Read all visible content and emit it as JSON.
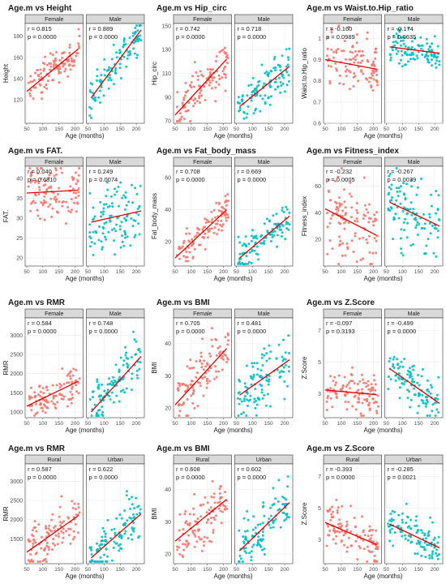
{
  "chart_data": [
    {
      "type": "scatter",
      "title": "Age.m vs Height",
      "xlabel": "Age (months)",
      "ylabel": "Height",
      "xlim": [
        45,
        225
      ],
      "ylim": [
        98,
        192
      ],
      "xticks": [
        50,
        100,
        150,
        200
      ],
      "yticks": [
        120,
        140,
        160,
        180
      ],
      "panels": [
        {
          "name": "Female",
          "r": "r = 0.815",
          "p": "p = 0.0000",
          "color": "#f8766d",
          "line": [
            [
              50,
              128
            ],
            [
              210,
              168
            ]
          ],
          "n": 110,
          "spread": 8
        },
        {
          "name": "Male",
          "r": "r = 0.889",
          "p": "p = 0.0000",
          "color": "#00bfc4",
          "line": [
            [
              60,
              122
            ],
            [
              215,
              186
            ]
          ],
          "n": 110,
          "spread": 9
        }
      ]
    },
    {
      "type": "scatter",
      "title": "Age.m vs Hip_circ",
      "xlabel": "Age (months)",
      "ylabel": "Hip_circ",
      "xlim": [
        45,
        225
      ],
      "ylim": [
        68,
        152
      ],
      "xticks": [
        50,
        100,
        150,
        200
      ],
      "yticks": [
        70,
        90,
        110,
        130,
        150
      ],
      "panels": [
        {
          "name": "Female",
          "r": "r = 0.742",
          "p": "p = 0.0000",
          "color": "#f8766d",
          "line": [
            [
              50,
              75
            ],
            [
              210,
              122
            ]
          ],
          "n": 110,
          "spread": 10
        },
        {
          "name": "Male",
          "r": "r = 0.718",
          "p": "p = 0.0000",
          "color": "#00bfc4",
          "line": [
            [
              60,
              82
            ],
            [
              215,
              116
            ]
          ],
          "n": 110,
          "spread": 9
        }
      ]
    },
    {
      "type": "scatter",
      "title": "Age.m vs Waist.to.Hip_ratio",
      "xlabel": "Age (months)",
      "ylabel": "Waist.to.Hip_ratio",
      "xlim": [
        45,
        225
      ],
      "ylim": [
        0.6,
        1.07
      ],
      "xticks": [
        50,
        100,
        150,
        200
      ],
      "yticks": [
        0.6,
        0.7,
        0.8,
        0.9,
        1.0
      ],
      "panels": [
        {
          "name": "Female",
          "r": "r = -0.160",
          "p": "p = 0.0989",
          "color": "#f8766d",
          "line": [
            [
              50,
              0.9
            ],
            [
              210,
              0.855
            ]
          ],
          "n": 110,
          "spread": 0.07
        },
        {
          "name": "Male",
          "r": "r = -0.174",
          "p": "p = 0.0635",
          "color": "#00bfc4",
          "line": [
            [
              60,
              0.96
            ],
            [
              215,
              0.93
            ]
          ],
          "n": 110,
          "spread": 0.04
        }
      ]
    },
    {
      "type": "scatter",
      "title": "Age.m vs FAT.",
      "xlabel": "Age (months)",
      "ylabel": "FAT.",
      "xlim": [
        45,
        225
      ],
      "ylim": [
        18,
        43
      ],
      "xticks": [
        50,
        100,
        150,
        200
      ],
      "yticks": [
        20,
        25,
        30,
        35,
        40
      ],
      "panels": [
        {
          "name": "Female",
          "r": "r = 0.040",
          "p": "p = 0.6810",
          "color": "#f8766d",
          "line": [
            [
              50,
              36.3
            ],
            [
              210,
              37
            ]
          ],
          "n": 110,
          "spread": 3.5
        },
        {
          "name": "Male",
          "r": "r = 0.249",
          "p": "p = 0.0074",
          "color": "#00bfc4",
          "line": [
            [
              60,
              29
            ],
            [
              215,
              31.8
            ]
          ],
          "n": 110,
          "spread": 4
        }
      ]
    },
    {
      "type": "scatter",
      "title": "Age.m vs Fat_body_mass",
      "xlabel": "Age (months)",
      "ylabel": "Fat_body_mass",
      "xlim": [
        45,
        225
      ],
      "ylim": [
        5,
        67
      ],
      "xticks": [
        50,
        100,
        150,
        200
      ],
      "yticks": [
        20,
        40,
        60
      ],
      "panels": [
        {
          "name": "Female",
          "r": "r = 0.708",
          "p": "p = 0.0000",
          "color": "#f8766d",
          "line": [
            [
              50,
              10
            ],
            [
              210,
              40
            ]
          ],
          "n": 110,
          "spread": 6
        },
        {
          "name": "Male",
          "r": "r = 0.669",
          "p": "p = 0.0000",
          "color": "#00bfc4",
          "line": [
            [
              60,
              10
            ],
            [
              215,
              36
            ]
          ],
          "n": 110,
          "spread": 6
        }
      ]
    },
    {
      "type": "scatter",
      "title": "Age.m vs Fitness_index",
      "xlabel": "Age (months)",
      "ylabel": "Fitness_index",
      "xlim": [
        45,
        225
      ],
      "ylim": [
        0,
        75
      ],
      "xticks": [
        50,
        100,
        150,
        200
      ],
      "yticks": [
        20,
        40,
        60
      ],
      "panels": [
        {
          "name": "Female",
          "r": "r = -0.232",
          "p": "p = 0.0005",
          "color": "#f8766d",
          "line": [
            [
              50,
              43
            ],
            [
              210,
              23
            ]
          ],
          "n": 110,
          "spread": 14
        },
        {
          "name": "Male",
          "r": "r = -0.267",
          "p": "p = 0.0039",
          "color": "#00bfc4",
          "line": [
            [
              60,
              48
            ],
            [
              215,
              30
            ]
          ],
          "n": 110,
          "spread": 14
        }
      ]
    },
    {
      "type": "scatter",
      "title": "Age.m vs RMR",
      "xlabel": "Age (months)",
      "ylabel": "RMR",
      "xlim": [
        45,
        225
      ],
      "ylim": [
        850,
        3450
      ],
      "xticks": [
        50,
        100,
        150,
        200
      ],
      "yticks": [
        1000,
        1500,
        2000,
        2500,
        3000
      ],
      "panels": [
        {
          "name": "Female",
          "r": "r = 0.584",
          "p": "p = 0.0000",
          "color": "#f8766d",
          "line": [
            [
              50,
              1150
            ],
            [
              210,
              1800
            ]
          ],
          "n": 110,
          "spread": 220
        },
        {
          "name": "Male",
          "r": "r = 0.748",
          "p": "p = 0.0000",
          "color": "#00bfc4",
          "line": [
            [
              60,
              1000
            ],
            [
              215,
              2450
            ]
          ],
          "n": 110,
          "spread": 350
        }
      ]
    },
    {
      "type": "scatter",
      "title": "Age.m vs BMI",
      "xlabel": "Age (months)",
      "ylabel": "BMI",
      "xlim": [
        45,
        225
      ],
      "ylim": [
        17,
        48
      ],
      "xticks": [
        50,
        100,
        150,
        200
      ],
      "yticks": [
        20,
        30,
        40
      ],
      "panels": [
        {
          "name": "Female",
          "r": "r = 0.705",
          "p": "p = 0.0000",
          "color": "#f8766d",
          "line": [
            [
              50,
              21
            ],
            [
              210,
              38.5
            ]
          ],
          "n": 110,
          "spread": 4
        },
        {
          "name": "Male",
          "r": "r = 0.481",
          "p": "p = 0.0000",
          "color": "#00bfc4",
          "line": [
            [
              60,
              24
            ],
            [
              215,
              35
            ]
          ],
          "n": 110,
          "spread": 4.5
        }
      ]
    },
    {
      "type": "scatter",
      "title": "Age.m vs Z.Score",
      "xlabel": "Age (months)",
      "ylabel": "Z.Score",
      "xlim": [
        45,
        225
      ],
      "ylim": [
        1.5,
        7.8
      ],
      "xticks": [
        50,
        100,
        150,
        200
      ],
      "yticks": [
        3,
        5,
        7
      ],
      "panels": [
        {
          "name": "Female",
          "r": "r = -0.097",
          "p": "p = 0.3193",
          "color": "#f8766d",
          "line": [
            [
              50,
              3.25
            ],
            [
              210,
              2.95
            ]
          ],
          "n": 110,
          "spread": 0.7
        },
        {
          "name": "Male",
          "r": "r = -0.499",
          "p": "p = 0.0000",
          "color": "#00bfc4",
          "line": [
            [
              60,
              4.6
            ],
            [
              215,
              2.4
            ]
          ],
          "n": 110,
          "spread": 0.7
        }
      ]
    },
    {
      "type": "scatter",
      "title": "Age.m vs RMR",
      "xlabel": "Age (months)",
      "ylabel": "RMR",
      "xlim": [
        45,
        225
      ],
      "ylim": [
        850,
        3450
      ],
      "xticks": [
        50,
        100,
        150,
        200
      ],
      "yticks": [
        1500,
        2000,
        2500,
        3000
      ],
      "panels": [
        {
          "name": "Rural",
          "r": "r = 0.587",
          "p": "p = 0.0000",
          "color": "#f8766d",
          "line": [
            [
              50,
              1150
            ],
            [
              210,
              2100
            ]
          ],
          "n": 110,
          "spread": 300
        },
        {
          "name": "Urban",
          "r": "r = 0.622",
          "p": "p = 0.0000",
          "color": "#00bfc4",
          "line": [
            [
              60,
              1000
            ],
            [
              215,
              2150
            ]
          ],
          "n": 110,
          "spread": 320
        }
      ]
    },
    {
      "type": "scatter",
      "title": "Age.m vs BMI",
      "xlabel": "Age (months)",
      "ylabel": "BMI",
      "xlim": [
        45,
        225
      ],
      "ylim": [
        17,
        48
      ],
      "xticks": [
        50,
        100,
        150,
        200
      ],
      "yticks": [
        20,
        30,
        40
      ],
      "panels": [
        {
          "name": "Rural",
          "r": "r = 0.608",
          "p": "p = 0.0000",
          "color": "#f8766d",
          "line": [
            [
              50,
              24
            ],
            [
              210,
              37
            ]
          ],
          "n": 110,
          "spread": 4.5
        },
        {
          "name": "Urban",
          "r": "r = 0.602",
          "p": "p = 0.0000",
          "color": "#00bfc4",
          "line": [
            [
              60,
              21
            ],
            [
              215,
              36
            ]
          ],
          "n": 110,
          "spread": 4.5
        }
      ]
    },
    {
      "type": "scatter",
      "title": "Age.m vs Z.Score",
      "xlabel": "Age (months)",
      "ylabel": "Z.Score",
      "xlim": [
        45,
        225
      ],
      "ylim": [
        1.5,
        7.8
      ],
      "xticks": [
        50,
        100,
        150,
        200
      ],
      "yticks": [
        3,
        5,
        7
      ],
      "panels": [
        {
          "name": "Rural",
          "r": "r = -0.393",
          "p": "p = 0.0000",
          "color": "#f8766d",
          "line": [
            [
              50,
              4.1
            ],
            [
              210,
              2.7
            ]
          ],
          "n": 110,
          "spread": 0.7
        },
        {
          "name": "Urban",
          "r": "r = -0.285",
          "p": "p = 0.0021",
          "color": "#00bfc4",
          "line": [
            [
              60,
              4.0
            ],
            [
              215,
              2.5
            ]
          ],
          "n": 110,
          "spread": 0.6
        }
      ]
    }
  ]
}
